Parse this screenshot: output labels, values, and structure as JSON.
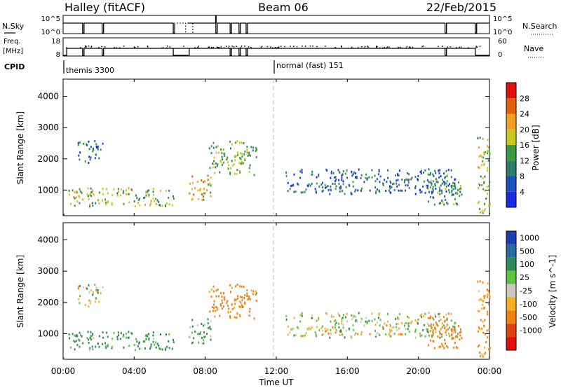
{
  "header": {
    "site": "Halley (fitACF)",
    "beam": "Beam 06",
    "date": "22/Feb/2015"
  },
  "nsky_panel": {
    "left_label": "N.Sky",
    "right_label": "N.Search",
    "left_ticks": [
      "10^5",
      "10^0"
    ],
    "right_ticks": [
      "10^5",
      "10^0"
    ]
  },
  "freq_panel": {
    "left_label_1": "Freq.",
    "left_label_2": "[MHz]",
    "right_label": "Nave",
    "left_ticks": [
      "18",
      "8"
    ],
    "right_ticks": [
      "60",
      "0"
    ]
  },
  "cpid": {
    "label": "CPID",
    "segments": [
      {
        "name": "themis 3300",
        "start_hour": 0,
        "end_hour": 12
      },
      {
        "name": "normal (fast) 151",
        "start_hour": 12,
        "end_hour": 24
      }
    ]
  },
  "x_axis": {
    "label": "Time UT",
    "ticks": [
      "00:00",
      "04:00",
      "08:00",
      "12:00",
      "16:00",
      "20:00",
      "00:00"
    ],
    "tick_hours": [
      0,
      4,
      8,
      12,
      16,
      20,
      24
    ]
  },
  "y_axis": {
    "label": "Slant Range [km]",
    "ticks": [
      "1000",
      "2000",
      "3000",
      "4000"
    ],
    "tick_values": [
      1000,
      2000,
      3000,
      4000
    ],
    "range": [
      180,
      4550
    ]
  },
  "power_scale": {
    "label": "Power [dB]",
    "ticks": [
      "4",
      "8",
      "12",
      "16",
      "20",
      "24",
      "28"
    ],
    "colors": [
      "#1a2be0",
      "#1f4fbf",
      "#2f7d6a",
      "#3a9a44",
      "#c8c820",
      "#f0a020",
      "#e06010",
      "#e01010"
    ]
  },
  "velocity_scale": {
    "label": "Velocity [m s^-1]",
    "ticks": [
      "1000",
      "500",
      "100",
      "25",
      "-25",
      "-100",
      "-500",
      "-1000"
    ],
    "colors": [
      "#1a3fb0",
      "#2a6aa0",
      "#2f8a5a",
      "#60c040",
      "#c8c8c0",
      "#f0b020",
      "#f08010",
      "#e04010",
      "#e01010"
    ]
  },
  "chart_data": {
    "type": "heatmap",
    "title": "Halley (fitACF) Beam 06 22/Feb/2015",
    "xlabel": "Time UT",
    "ylabel": "Slant Range [km]",
    "xlim_hours": [
      0,
      24
    ],
    "ylim_km": [
      180,
      4550
    ],
    "panels": [
      "Power [dB]",
      "Velocity [m s^-1]"
    ],
    "scatter_regions": [
      {
        "hour_start": 0.0,
        "hour_end": 0.6,
        "range_start": 200,
        "range_end": 260,
        "power_db": 26,
        "velocity": -600
      },
      {
        "hour_start": 0.3,
        "hour_end": 6.2,
        "range_start": 500,
        "range_end": 1100,
        "power_db": 14,
        "velocity": 150
      },
      {
        "hour_start": 0.8,
        "hour_end": 2.2,
        "range_start": 1900,
        "range_end": 2600,
        "power_db": 6,
        "velocity": 20
      },
      {
        "hour_start": 7.0,
        "hour_end": 8.3,
        "range_start": 700,
        "range_end": 1500,
        "power_db": 18,
        "velocity": 120
      },
      {
        "hour_start": 8.2,
        "hour_end": 10.9,
        "range_start": 1500,
        "range_end": 2600,
        "power_db": 12,
        "velocity": -200
      },
      {
        "hour_start": 12.5,
        "hour_end": 22.2,
        "range_start": 900,
        "range_end": 1700,
        "power_db": 6,
        "velocity": 5
      },
      {
        "hour_start": 20.5,
        "hour_end": 22.4,
        "range_start": 500,
        "range_end": 1600,
        "power_db": 10,
        "velocity": -300
      },
      {
        "hour_start": 23.3,
        "hour_end": 24.0,
        "range_start": 300,
        "range_end": 2800,
        "power_db": 14,
        "velocity": -150
      }
    ]
  }
}
